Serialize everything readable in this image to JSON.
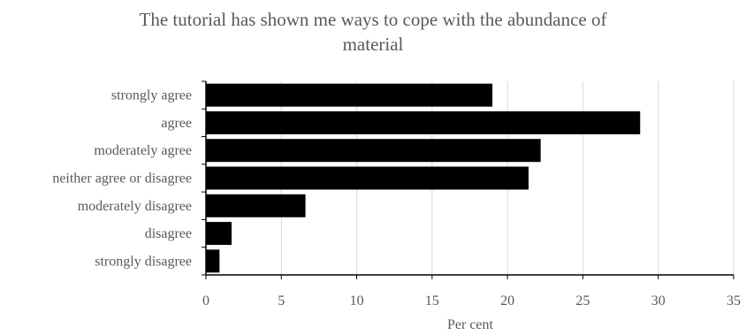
{
  "chart_data": {
    "type": "bar",
    "orientation": "horizontal",
    "title_lines": [
      "The tutorial has shown me ways to cope with the abundance of",
      "material"
    ],
    "categories": [
      "strongly agree",
      "agree",
      "moderately agree",
      "neither agree or disagree",
      "moderately disagree",
      "disagree",
      "strongly disagree"
    ],
    "values": [
      19.0,
      28.8,
      22.2,
      21.4,
      6.6,
      1.7,
      0.9
    ],
    "xlabel": "Per cent",
    "ylabel": "",
    "xlim": [
      0,
      35
    ],
    "xticks": [
      "0",
      "5",
      "10",
      "15",
      "20",
      "25",
      "30",
      "35"
    ],
    "grid": "vertical",
    "bar_color": "#000000",
    "grid_color": "#d9d9d9",
    "text_color": "#595959"
  }
}
